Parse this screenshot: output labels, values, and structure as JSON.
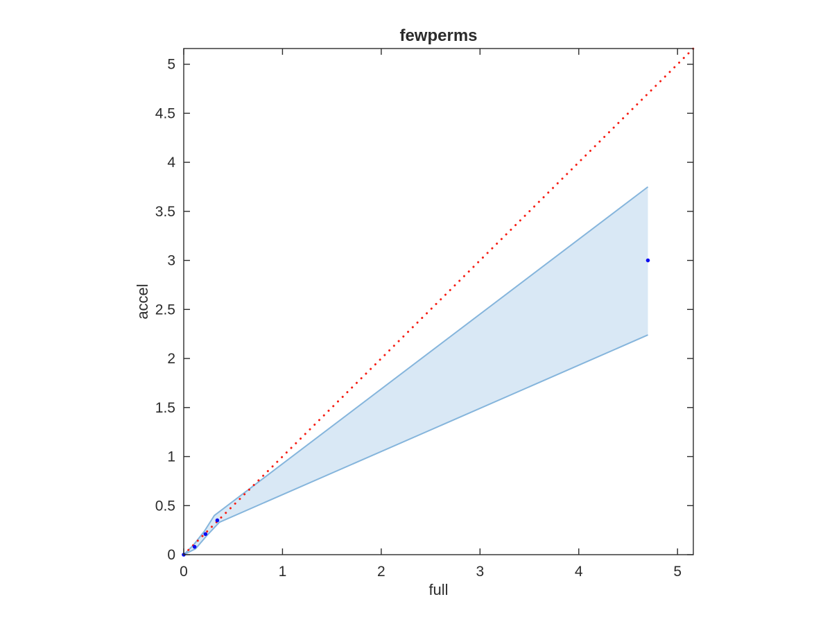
{
  "chart_data": {
    "type": "scatter",
    "title": "fewperms",
    "xlabel": "full",
    "ylabel": "accel",
    "xlim": [
      0,
      5.16
    ],
    "ylim": [
      0,
      5.16
    ],
    "xticks": [
      0,
      1,
      2,
      3,
      4,
      5
    ],
    "yticks": [
      0,
      0.5,
      1,
      1.5,
      2,
      2.5,
      3,
      3.5,
      4,
      4.5,
      5
    ],
    "grid": false,
    "legend_position": "none",
    "axis_color": "#2b2b2b",
    "background_color": "#ffffff",
    "series": [
      {
        "name": "confidence-band",
        "type": "band",
        "fill_color": "#d9e8f5",
        "edge_color": "#85b5dc",
        "upper": [
          [
            0,
            0
          ],
          [
            0.1,
            0.1
          ],
          [
            0.21,
            0.24
          ],
          [
            0.31,
            0.4
          ],
          [
            4.7,
            3.75
          ]
        ],
        "lower": [
          [
            0,
            0
          ],
          [
            0.12,
            0.06
          ],
          [
            0.23,
            0.19
          ],
          [
            0.36,
            0.33
          ],
          [
            4.7,
            2.24
          ]
        ]
      },
      {
        "name": "identity-line",
        "type": "line",
        "style": "dotted",
        "color": "#f51e14",
        "points": [
          [
            0,
            0
          ],
          [
            5.16,
            5.16
          ]
        ]
      },
      {
        "name": "accel-vs-full-points",
        "type": "scatter",
        "marker": "dot",
        "color": "#0d0df0",
        "points": [
          [
            0,
            0
          ],
          [
            0.11,
            0.08
          ],
          [
            0.22,
            0.21
          ],
          [
            0.34,
            0.35
          ],
          [
            4.7,
            3.0
          ]
        ]
      }
    ]
  }
}
